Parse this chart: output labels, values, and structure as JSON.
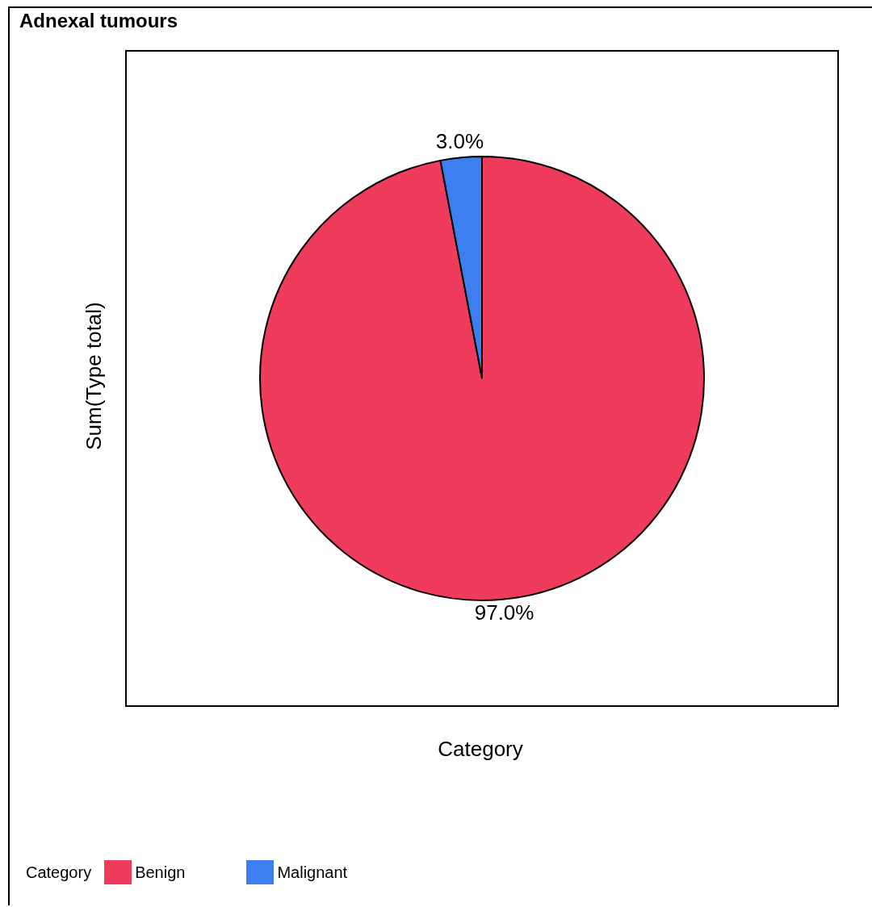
{
  "chart_data": {
    "type": "pie",
    "title": "Adnexal tumours",
    "xlabel": "Category",
    "ylabel": "Sum(Type total)",
    "legend_title": "Category",
    "legend": "bottom left",
    "categories": [
      "Benign",
      "Malignant"
    ],
    "values": [
      97.0,
      3.0
    ],
    "colors": [
      "#ef3b5c",
      "#3d7ef0"
    ],
    "value_labels": [
      "97.0%",
      "3.0%"
    ]
  }
}
